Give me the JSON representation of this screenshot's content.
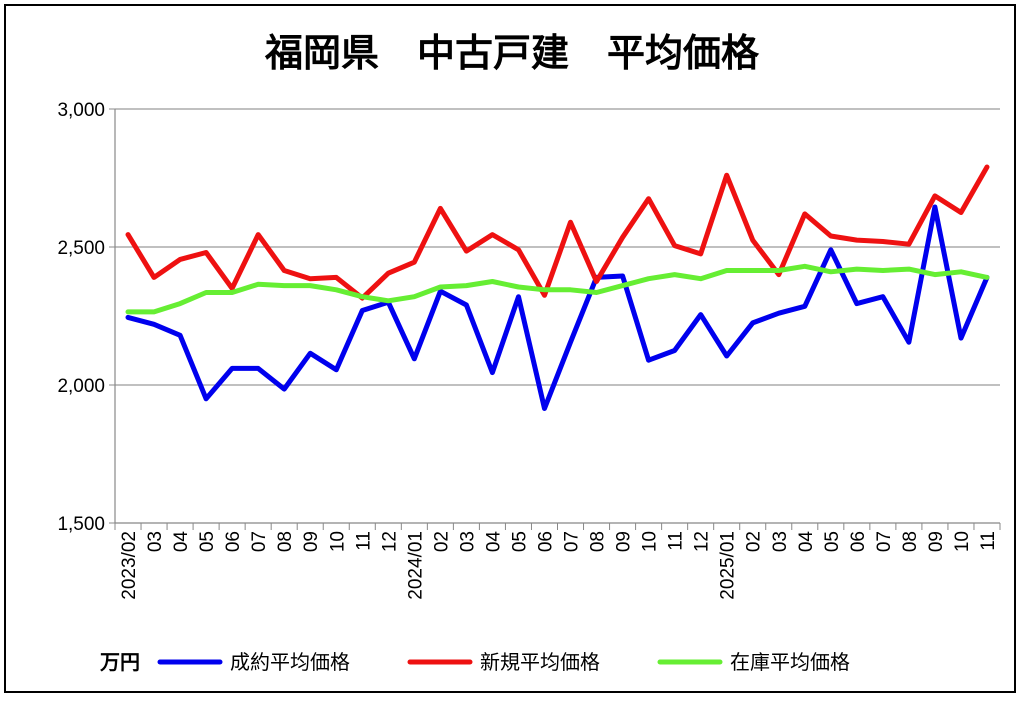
{
  "chart_data": {
    "type": "line",
    "title": "福岡県　中古戸建　平均価格",
    "unit_label": "万円",
    "xlabel": "",
    "ylabel": "",
    "ylim": [
      1500,
      3000
    ],
    "yticks": [
      "1,500",
      "2,000",
      "2,500",
      "3,000"
    ],
    "ytick_values": [
      1500,
      2000,
      2500,
      3000
    ],
    "grid": true,
    "legend_position": "bottom",
    "categories": [
      "2023/02",
      "03",
      "04",
      "05",
      "06",
      "07",
      "08",
      "09",
      "10",
      "11",
      "12",
      "2024/01",
      "02",
      "03",
      "04",
      "05",
      "06",
      "07",
      "08",
      "09",
      "10",
      "11",
      "12",
      "2025/01",
      "02",
      "03",
      "04",
      "05",
      "06",
      "07",
      "08",
      "09",
      "10",
      "11"
    ],
    "series": [
      {
        "name": "成約平均価格",
        "color": "#0000ee",
        "values": [
          2245,
          2220,
          2180,
          1950,
          2060,
          2060,
          1985,
          2115,
          2055,
          2270,
          2300,
          2095,
          2340,
          2290,
          2045,
          2320,
          1915,
          2155,
          2390,
          2395,
          2090,
          2125,
          2255,
          2105,
          2225,
          2260,
          2285,
          2490,
          2295,
          2320,
          2155,
          2645,
          2170,
          2390
        ]
      },
      {
        "name": "新規平均価格",
        "color": "#ee1111",
        "values": [
          2545,
          2390,
          2455,
          2480,
          2350,
          2545,
          2415,
          2385,
          2390,
          2315,
          2405,
          2445,
          2640,
          2485,
          2545,
          2490,
          2325,
          2590,
          2375,
          2535,
          2675,
          2505,
          2475,
          2760,
          2525,
          2400,
          2620,
          2540,
          2525,
          2520,
          2510,
          2685,
          2625,
          2790
        ]
      },
      {
        "name": "在庫平均価格",
        "color": "#66ee33",
        "values": [
          2265,
          2265,
          2295,
          2335,
          2335,
          2365,
          2360,
          2360,
          2345,
          2320,
          2305,
          2320,
          2355,
          2360,
          2375,
          2355,
          2345,
          2345,
          2335,
          2360,
          2385,
          2400,
          2385,
          2415,
          2415,
          2415,
          2430,
          2410,
          2420,
          2415,
          2420,
          2400,
          2410,
          2390
        ]
      }
    ]
  }
}
